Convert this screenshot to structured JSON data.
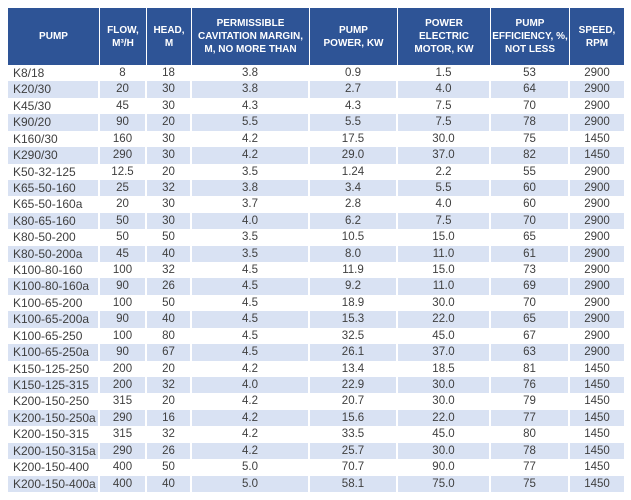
{
  "colors": {
    "header_bg": "#2e5496",
    "header_text": "#ffffff",
    "row_alt_bg": "#d9e2f3",
    "row_bg": "#ffffff",
    "body_text": "#3f3f3f",
    "page_bg": "#ffffff"
  },
  "table": {
    "columns": [
      {
        "key": "pump",
        "label": "PUMP"
      },
      {
        "key": "flow",
        "label": "FLOW,\nM³/H"
      },
      {
        "key": "head",
        "label": "HEAD,\nM"
      },
      {
        "key": "cavitation_margin",
        "label": "PERMISSIBLE\nCAVITATION MARGIN,\nM, NO MORE THAN"
      },
      {
        "key": "pump_power",
        "label": "PUMP\nPOWER, KW"
      },
      {
        "key": "motor_power",
        "label": "POWER\nELECTRIC\nMOTOR, KW"
      },
      {
        "key": "efficiency",
        "label": "PUMP\nEFFICIENCY, %,\nNOT LESS"
      },
      {
        "key": "speed",
        "label": "SPEED,\nRPM"
      }
    ],
    "rows": [
      [
        "K8/18",
        "8",
        "18",
        "3.8",
        "0.9",
        "1.5",
        "53",
        "2900"
      ],
      [
        "K20/30",
        "20",
        "30",
        "3.8",
        "2.7",
        "4.0",
        "64",
        "2900"
      ],
      [
        "K45/30",
        "45",
        "30",
        "4.3",
        "4.3",
        "7.5",
        "70",
        "2900"
      ],
      [
        "K90/20",
        "90",
        "20",
        "5.5",
        "5.5",
        "7.5",
        "78",
        "2900"
      ],
      [
        "K160/30",
        "160",
        "30",
        "4.2",
        "17.5",
        "30.0",
        "75",
        "1450"
      ],
      [
        "K290/30",
        "290",
        "30",
        "4.2",
        "29.0",
        "37.0",
        "82",
        "1450"
      ],
      [
        "K50-32-125",
        "12.5",
        "20",
        "3.5",
        "1.24",
        "2.2",
        "55",
        "2900"
      ],
      [
        "K65-50-160",
        "25",
        "32",
        "3.8",
        "3.4",
        "5.5",
        "60",
        "2900"
      ],
      [
        "K65-50-160a",
        "20",
        "30",
        "3.7",
        "2.8",
        "4.0",
        "60",
        "2900"
      ],
      [
        "K80-65-160",
        "50",
        "30",
        "4.0",
        "6.2",
        "7.5",
        "70",
        "2900"
      ],
      [
        "K80-50-200",
        "50",
        "50",
        "3.5",
        "10.5",
        "15.0",
        "65",
        "2900"
      ],
      [
        "K80-50-200a",
        "45",
        "40",
        "3.5",
        "8.0",
        "11.0",
        "61",
        "2900"
      ],
      [
        "K100-80-160",
        "100",
        "32",
        "4.5",
        "11.9",
        "15.0",
        "73",
        "2900"
      ],
      [
        "K100-80-160a",
        "90",
        "26",
        "4.5",
        "9.2",
        "11.0",
        "69",
        "2900"
      ],
      [
        "K100-65-200",
        "100",
        "50",
        "4.5",
        "18.9",
        "30.0",
        "70",
        "2900"
      ],
      [
        "K100-65-200a",
        "90",
        "40",
        "4.5",
        "15.3",
        "22.0",
        "65",
        "2900"
      ],
      [
        "K100-65-250",
        "100",
        "80",
        "4.5",
        "32.5",
        "45.0",
        "67",
        "2900"
      ],
      [
        "K100-65-250a",
        "90",
        "67",
        "4.5",
        "26.1",
        "37.0",
        "63",
        "2900"
      ],
      [
        "K150-125-250",
        "200",
        "20",
        "4.2",
        "13.4",
        "18.5",
        "81",
        "1450"
      ],
      [
        "K150-125-315",
        "200",
        "32",
        "4.0",
        "22.9",
        "30.0",
        "76",
        "1450"
      ],
      [
        "K200-150-250",
        "315",
        "20",
        "4.2",
        "20.7",
        "30.0",
        "79",
        "1450"
      ],
      [
        "K200-150-250a",
        "290",
        "16",
        "4.2",
        "15.6",
        "22.0",
        "77",
        "1450"
      ],
      [
        "K200-150-315",
        "315",
        "32",
        "4.2",
        "33.5",
        "45.0",
        "80",
        "1450"
      ],
      [
        "K200-150-315a",
        "290",
        "26",
        "4.2",
        "25.7",
        "30.0",
        "78",
        "1450"
      ],
      [
        "K200-150-400",
        "400",
        "50",
        "5.0",
        "70.7",
        "90.0",
        "77",
        "1450"
      ],
      [
        "K200-150-400a",
        "400",
        "40",
        "5.0",
        "58.1",
        "75.0",
        "75",
        "1450"
      ]
    ]
  }
}
